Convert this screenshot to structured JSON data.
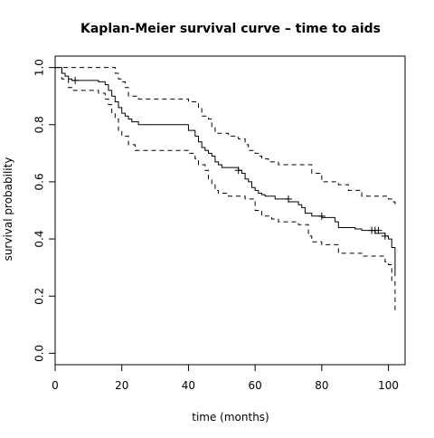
{
  "chart_data": {
    "type": "line",
    "title": "Kaplan-Meier survival curve – time to aids",
    "xlabel": "time (months)",
    "ylabel": "survival probability",
    "xlim": [
      0,
      105
    ],
    "ylim": [
      -0.04,
      1.04
    ],
    "xticks": [
      0,
      20,
      40,
      60,
      80,
      100
    ],
    "yticks": [
      0.0,
      0.2,
      0.4,
      0.6,
      0.8,
      1.0
    ],
    "xtick_labels": [
      "0",
      "20",
      "40",
      "60",
      "80",
      "100"
    ],
    "ytick_labels": [
      "0.0",
      "0.2",
      "0.4",
      "0.6",
      "0.8",
      "1.0"
    ],
    "grid": false,
    "series": [
      {
        "style": "solid",
        "step": true,
        "x": [
          0,
          2,
          3,
          4,
          5,
          13,
          15,
          16,
          17,
          18,
          19,
          20,
          21,
          22,
          23,
          25,
          35,
          40,
          42,
          43,
          44,
          45,
          46,
          47,
          48,
          49,
          50,
          52,
          55,
          56,
          57,
          58,
          59,
          60,
          61,
          62,
          63,
          66,
          70,
          73,
          74,
          75,
          77,
          80,
          84,
          85,
          88,
          90,
          92,
          96,
          99,
          100,
          101,
          102
        ],
        "y": [
          1.0,
          0.98,
          0.97,
          0.96,
          0.955,
          0.95,
          0.94,
          0.92,
          0.9,
          0.88,
          0.86,
          0.84,
          0.83,
          0.82,
          0.81,
          0.8,
          0.8,
          0.78,
          0.76,
          0.74,
          0.72,
          0.71,
          0.7,
          0.69,
          0.67,
          0.66,
          0.65,
          0.65,
          0.64,
          0.63,
          0.61,
          0.6,
          0.58,
          0.57,
          0.56,
          0.555,
          0.55,
          0.54,
          0.53,
          0.52,
          0.51,
          0.49,
          0.48,
          0.475,
          0.46,
          0.44,
          0.44,
          0.435,
          0.43,
          0.42,
          0.41,
          0.4,
          0.37,
          0.27
        ]
      },
      {
        "style": "dashed",
        "step": true,
        "x": [
          0,
          2,
          6,
          18,
          19,
          20,
          21,
          22,
          25,
          40,
          43,
          44,
          46,
          47,
          48,
          52,
          55,
          57,
          58,
          60,
          61,
          62,
          64,
          67,
          76,
          77,
          80,
          85,
          88,
          92,
          100,
          101,
          102
        ],
        "y": [
          1.0,
          1.0,
          1.0,
          0.98,
          0.96,
          0.95,
          0.93,
          0.9,
          0.89,
          0.88,
          0.86,
          0.83,
          0.82,
          0.79,
          0.77,
          0.76,
          0.75,
          0.73,
          0.71,
          0.7,
          0.69,
          0.68,
          0.67,
          0.66,
          0.66,
          0.63,
          0.6,
          0.59,
          0.57,
          0.55,
          0.54,
          0.53,
          0.52
        ]
      },
      {
        "style": "dashed",
        "step": true,
        "x": [
          0,
          2,
          4,
          5,
          13,
          15,
          16,
          17,
          18,
          19,
          20,
          22,
          24,
          40,
          42,
          43,
          45,
          46,
          47,
          48,
          49,
          52,
          57,
          60,
          62,
          65,
          67,
          73,
          76,
          77,
          80,
          85,
          92,
          99,
          100,
          101,
          102
        ],
        "y": [
          1.0,
          0.96,
          0.93,
          0.92,
          0.91,
          0.89,
          0.87,
          0.84,
          0.82,
          0.78,
          0.76,
          0.73,
          0.71,
          0.7,
          0.68,
          0.66,
          0.64,
          0.61,
          0.59,
          0.57,
          0.56,
          0.55,
          0.54,
          0.5,
          0.48,
          0.47,
          0.46,
          0.45,
          0.41,
          0.39,
          0.38,
          0.35,
          0.34,
          0.32,
          0.31,
          0.25,
          0.15
        ]
      }
    ],
    "censor_marks": {
      "x": [
        6,
        55,
        70,
        80,
        95,
        96,
        97,
        99
      ],
      "y": [
        0.955,
        0.64,
        0.54,
        0.48,
        0.43,
        0.43,
        0.43,
        0.41
      ]
    }
  }
}
